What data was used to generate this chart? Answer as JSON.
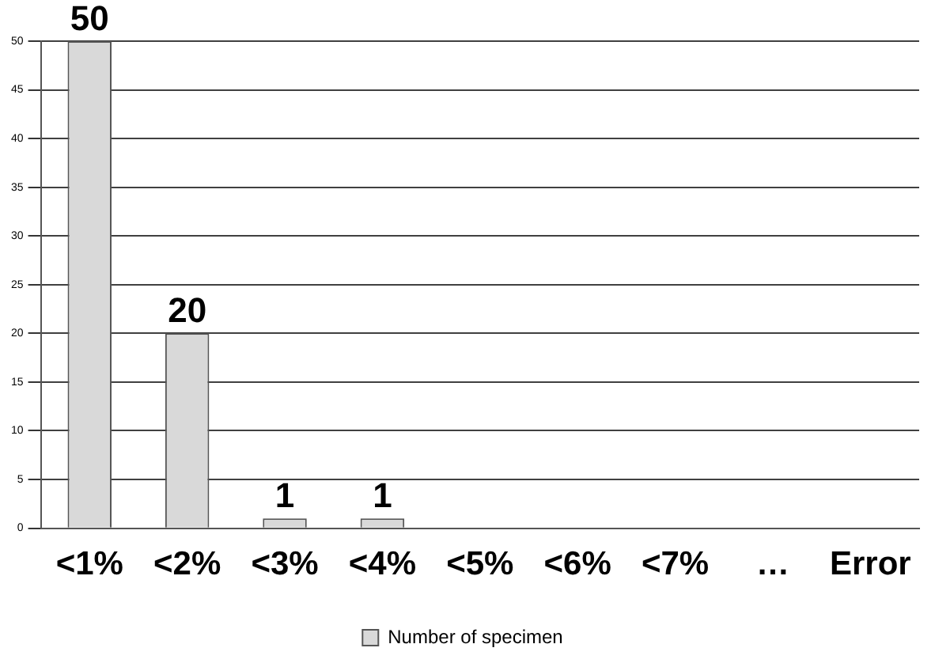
{
  "chart_data": {
    "type": "bar",
    "categories": [
      "<1%",
      "<2%",
      "<3%",
      "<4%",
      "<5%",
      "<6%",
      "<7%",
      "…",
      "Error"
    ],
    "series": [
      {
        "name": "Number of specimen",
        "color": "#d9d9d9",
        "values": [
          50,
          20,
          1,
          1,
          0,
          0,
          0,
          0,
          0
        ],
        "value_labels": [
          "50",
          "20",
          "1",
          "1",
          null,
          null,
          null,
          null,
          null
        ]
      }
    ],
    "ylim": [
      0,
      50
    ],
    "yticks": [
      0,
      5,
      10,
      15,
      20,
      25,
      30,
      35,
      40,
      45,
      50
    ],
    "grid": "y",
    "legend": "bottom"
  }
}
